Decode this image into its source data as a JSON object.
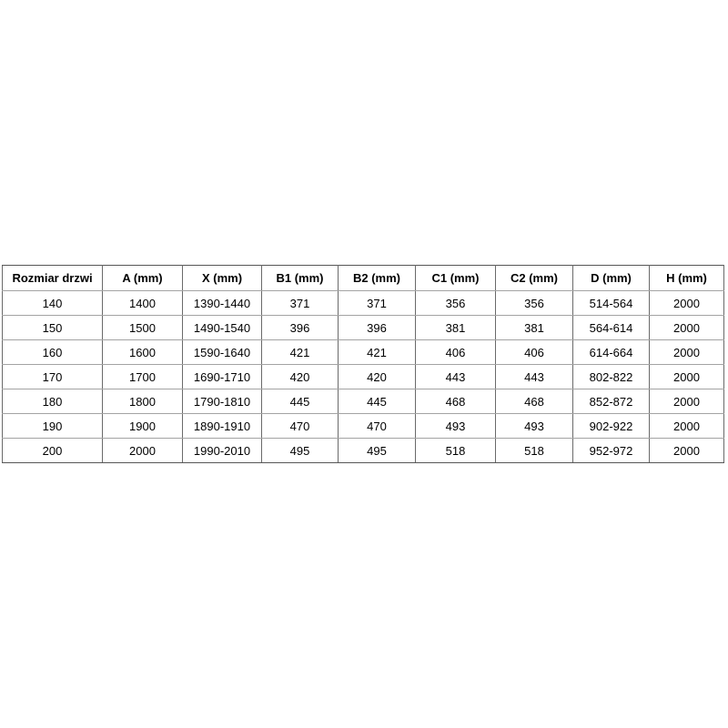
{
  "table": {
    "name": "door-sizing-table",
    "columns": [
      "Rozmiar drzwi",
      "A (mm)",
      "X (mm)",
      "B1 (mm)",
      "B2 (mm)",
      "C1 (mm)",
      "C2 (mm)",
      "D (mm)",
      "H (mm)"
    ],
    "rows": [
      [
        "140",
        "1400",
        "1390-1440",
        "371",
        "371",
        "356",
        "356",
        "514-564",
        "2000"
      ],
      [
        "150",
        "1500",
        "1490-1540",
        "396",
        "396",
        "381",
        "381",
        "564-614",
        "2000"
      ],
      [
        "160",
        "1600",
        "1590-1640",
        "421",
        "421",
        "406",
        "406",
        "614-664",
        "2000"
      ],
      [
        "170",
        "1700",
        "1690-1710",
        "420",
        "420",
        "443",
        "443",
        "802-822",
        "2000"
      ],
      [
        "180",
        "1800",
        "1790-1810",
        "445",
        "445",
        "468",
        "468",
        "852-872",
        "2000"
      ],
      [
        "190",
        "1900",
        "1890-1910",
        "470",
        "470",
        "493",
        "493",
        "902-922",
        "2000"
      ],
      [
        "200",
        "2000",
        "1990-2010",
        "495",
        "495",
        "518",
        "518",
        "952-972",
        "2000"
      ]
    ]
  },
  "colors": {
    "background": "#ffffff",
    "text": "#000000",
    "border_outer": "#565656",
    "border_vertical": "#6a6a6a",
    "border_horizontal": "#a3a3a3"
  }
}
